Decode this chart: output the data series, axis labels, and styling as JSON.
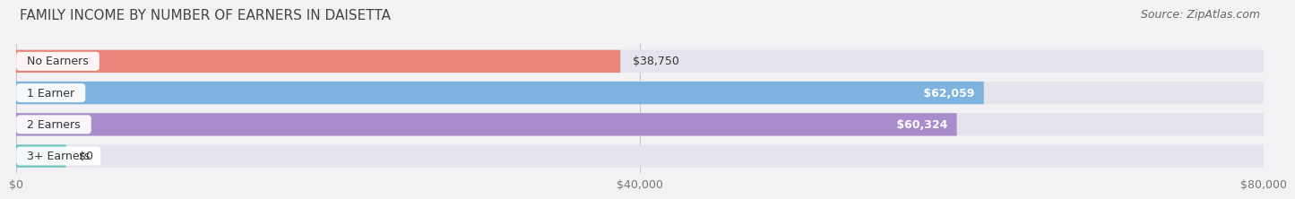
{
  "title": "FAMILY INCOME BY NUMBER OF EARNERS IN DAISETTA",
  "source": "Source: ZipAtlas.com",
  "categories": [
    "No Earners",
    "1 Earner",
    "2 Earners",
    "3+ Earners"
  ],
  "values": [
    38750,
    62059,
    60324,
    0
  ],
  "bar_colors": [
    "#E8847A",
    "#7EB3E0",
    "#A98CCC",
    "#6DC5C0"
  ],
  "label_bg_colors": [
    "#E8847A",
    "#7EB3E0",
    "#A98CCC",
    "#6DC5C0"
  ],
  "xlim": [
    0,
    80000
  ],
  "xticks": [
    0,
    40000,
    80000
  ],
  "xtick_labels": [
    "$0",
    "$40,000",
    "$80,000"
  ],
  "background_color": "#f2f2f4",
  "bar_background": "#e4e4ec",
  "value_label_inside": [
    false,
    true,
    true,
    false
  ],
  "small_bar_width": 3200,
  "title_fontsize": 11,
  "source_fontsize": 9,
  "label_fontsize": 9,
  "tick_fontsize": 9,
  "category_fontsize": 9
}
